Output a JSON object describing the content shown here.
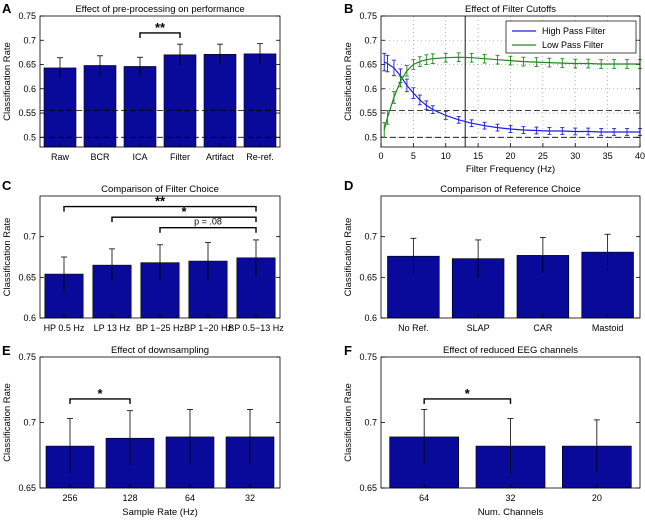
{
  "colors": {
    "bar": "#0a0a9a",
    "high_pass": "#1f1fe0",
    "low_pass": "#1e8a1e",
    "axis": "#000000"
  },
  "chart_data": [
    {
      "id": "A",
      "type": "bar",
      "title": "Effect of pre-processing on performance",
      "xlabel": "",
      "ylabel": "Classification Rate",
      "categories": [
        "Raw",
        "BCR",
        "ICA",
        "Filter",
        "Artifact",
        "Re-ref."
      ],
      "values": [
        0.643,
        0.648,
        0.646,
        0.67,
        0.671,
        0.672
      ],
      "errors": [
        0.021,
        0.02,
        0.019,
        0.022,
        0.021,
        0.021
      ],
      "ylim": [
        0.48,
        0.75
      ],
      "yticks": [
        "0.5",
        "0.55",
        "0.6",
        "0.65",
        "0.7",
        "0.75"
      ],
      "reference_lines": [
        0.555,
        0.5
      ],
      "significance": [
        {
          "from": 2,
          "to": 3,
          "label": "**",
          "y": 0.715
        }
      ]
    },
    {
      "id": "B",
      "type": "line",
      "title": "Effect of Filter Cutoffs",
      "xlabel": "Filter Frequency (Hz)",
      "ylabel": "Classification Rate",
      "xlim": [
        0,
        40
      ],
      "ylim": [
        0.48,
        0.75
      ],
      "xticks": [
        "0",
        "5",
        "10",
        "15",
        "20",
        "25",
        "30",
        "35",
        "40"
      ],
      "yticks": [
        "0.5",
        "0.55",
        "0.6",
        "0.65",
        "0.7",
        "0.75"
      ],
      "vline": 13,
      "reference_lines": [
        0.555,
        0.5
      ],
      "series": [
        {
          "name": "High Pass Filter",
          "x": [
            0.5,
            1,
            2,
            3,
            4,
            5,
            6,
            7,
            8,
            10,
            12,
            14,
            16,
            18,
            20,
            22,
            24,
            26,
            28,
            30,
            32,
            34,
            36,
            38,
            40
          ],
          "y": [
            0.655,
            0.652,
            0.643,
            0.627,
            0.607,
            0.591,
            0.577,
            0.566,
            0.557,
            0.545,
            0.536,
            0.529,
            0.524,
            0.52,
            0.517,
            0.515,
            0.514,
            0.513,
            0.513,
            0.512,
            0.512,
            0.511,
            0.511,
            0.511,
            0.511
          ],
          "err": [
            0.018,
            0.017,
            0.016,
            0.014,
            0.013,
            0.011,
            0.01,
            0.009,
            0.008,
            0.008,
            0.007,
            0.007,
            0.007,
            0.007,
            0.007,
            0.007,
            0.007,
            0.007,
            0.007,
            0.007,
            0.007,
            0.007,
            0.007,
            0.007,
            0.007
          ]
        },
        {
          "name": "Low Pass Filter",
          "x": [
            0.5,
            1,
            2,
            3,
            4,
            5,
            6,
            7,
            8,
            10,
            12,
            14,
            16,
            18,
            20,
            22,
            24,
            26,
            28,
            30,
            32,
            34,
            36,
            38,
            40
          ],
          "y": [
            0.515,
            0.541,
            0.582,
            0.615,
            0.637,
            0.65,
            0.656,
            0.66,
            0.662,
            0.664,
            0.665,
            0.664,
            0.662,
            0.66,
            0.658,
            0.656,
            0.655,
            0.654,
            0.653,
            0.652,
            0.652,
            0.651,
            0.651,
            0.651,
            0.651
          ],
          "err": [
            0.015,
            0.014,
            0.012,
            0.011,
            0.011,
            0.01,
            0.01,
            0.01,
            0.01,
            0.009,
            0.009,
            0.009,
            0.009,
            0.009,
            0.009,
            0.009,
            0.009,
            0.009,
            0.009,
            0.009,
            0.009,
            0.009,
            0.009,
            0.009,
            0.009
          ]
        }
      ],
      "legend": "top-right"
    },
    {
      "id": "C",
      "type": "bar",
      "title": "Comparison of Filter Choice",
      "xlabel": "",
      "ylabel": "Classification Rate",
      "categories": [
        "HP 0.5 Hz",
        "LP 13 Hz",
        "BP 1−25 Hz",
        "BP 1−20 Hz",
        "BP 0.5−13 Hz"
      ],
      "values": [
        0.654,
        0.665,
        0.668,
        0.67,
        0.674
      ],
      "errors": [
        0.021,
        0.02,
        0.022,
        0.023,
        0.022
      ],
      "ylim": [
        0.6,
        0.75
      ],
      "yticks": [
        "0.6",
        "0.65",
        "0.7"
      ],
      "significance": [
        {
          "from": 0,
          "to": 4,
          "label": "**",
          "y": 0.737
        },
        {
          "from": 1,
          "to": 4,
          "label": "*",
          "y": 0.724
        },
        {
          "from": 2,
          "to": 4,
          "label": "p = .08",
          "y": 0.711
        }
      ]
    },
    {
      "id": "D",
      "type": "bar",
      "title": "Comparison of Reference Choice",
      "xlabel": "",
      "ylabel": "Classification Rate",
      "categories": [
        "No Ref.",
        "SLAP",
        "CAR",
        "Mastoid"
      ],
      "values": [
        0.676,
        0.673,
        0.677,
        0.681
      ],
      "errors": [
        0.022,
        0.023,
        0.022,
        0.022
      ],
      "ylim": [
        0.6,
        0.75
      ],
      "yticks": [
        "0.6",
        "0.65",
        "0.7"
      ],
      "significance": []
    },
    {
      "id": "E",
      "type": "bar",
      "title": "Effect of downsampling",
      "xlabel": "Sample Rate (Hz)",
      "ylabel": "Classification Rate",
      "categories": [
        "256",
        "128",
        "64",
        "32"
      ],
      "values": [
        0.682,
        0.688,
        0.689,
        0.689
      ],
      "errors": [
        0.021,
        0.021,
        0.021,
        0.021
      ],
      "ylim": [
        0.65,
        0.75
      ],
      "yticks": [
        "0.65",
        "0.7",
        "0.75"
      ],
      "significance": [
        {
          "from": 0,
          "to": 1,
          "label": "*",
          "y": 0.718
        }
      ]
    },
    {
      "id": "F",
      "type": "bar",
      "title": "Effect of reduced EEG channels",
      "xlabel": "Num. Channels",
      "ylabel": "Classification Rate",
      "categories": [
        "64",
        "32",
        "20"
      ],
      "values": [
        0.689,
        0.682,
        0.682
      ],
      "errors": [
        0.021,
        0.021,
        0.02
      ],
      "ylim": [
        0.65,
        0.75
      ],
      "yticks": [
        "0.65",
        "0.7",
        "0.75"
      ],
      "significance": [
        {
          "from": 0,
          "to": 1,
          "label": "*",
          "y": 0.718
        }
      ]
    }
  ]
}
